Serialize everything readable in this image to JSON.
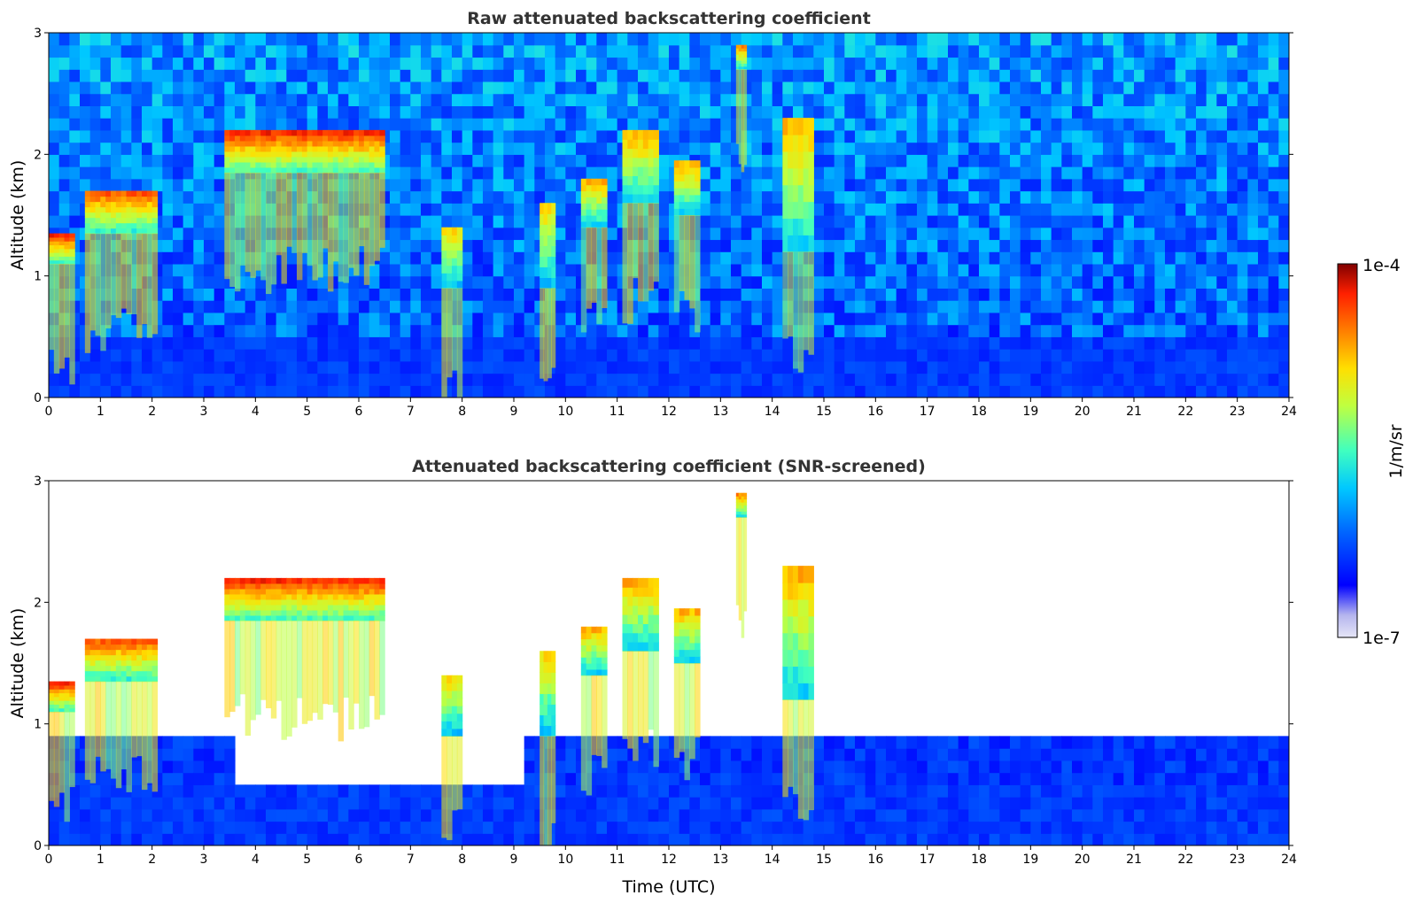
{
  "chart_data": [
    {
      "type": "heatmap",
      "title": "Raw attenuated backscattering coefficient",
      "xlabel": "",
      "ylabel": "Altitude (km)",
      "xlim": [
        0,
        24
      ],
      "ylim": [
        0,
        3
      ],
      "xticks": [
        "0",
        "1",
        "2",
        "3",
        "4",
        "5",
        "6",
        "7",
        "8",
        "9",
        "10",
        "11",
        "12",
        "13",
        "14",
        "15",
        "16",
        "17",
        "18",
        "19",
        "20",
        "21",
        "22",
        "23",
        "24"
      ],
      "yticks": [
        "0",
        "1",
        "2",
        "3"
      ],
      "screened": false,
      "layers": [
        {
          "t0": 0.0,
          "t1": 0.5,
          "base": 1.1,
          "top": 1.35,
          "intensity": 1.0
        },
        {
          "t0": 0.7,
          "t1": 2.1,
          "base": 1.35,
          "top": 1.7,
          "intensity": 0.95
        },
        {
          "t0": 3.4,
          "t1": 6.5,
          "base": 1.85,
          "top": 2.2,
          "intensity": 1.0
        },
        {
          "t0": 7.6,
          "t1": 8.0,
          "base": 0.9,
          "top": 1.4,
          "intensity": 0.8
        },
        {
          "t0": 9.5,
          "t1": 9.8,
          "base": 0.9,
          "top": 1.6,
          "intensity": 0.8
        },
        {
          "t0": 10.3,
          "t1": 10.8,
          "base": 1.4,
          "top": 1.8,
          "intensity": 0.85
        },
        {
          "t0": 11.1,
          "t1": 11.8,
          "base": 1.6,
          "top": 2.2,
          "intensity": 0.85
        },
        {
          "t0": 12.1,
          "t1": 12.6,
          "base": 1.5,
          "top": 1.95,
          "intensity": 0.85
        },
        {
          "t0": 13.3,
          "t1": 13.5,
          "base": 2.7,
          "top": 2.9,
          "intensity": 0.9
        },
        {
          "t0": 14.2,
          "t1": 14.8,
          "base": 1.2,
          "top": 2.3,
          "intensity": 0.85
        }
      ]
    },
    {
      "type": "heatmap",
      "title": "Attenuated backscattering coefficient (SNR-screened)",
      "xlabel": "Time (UTC)",
      "ylabel": "Altitude (km)",
      "xlim": [
        0,
        24
      ],
      "ylim": [
        0,
        3
      ],
      "xticks": [
        "0",
        "1",
        "2",
        "3",
        "4",
        "5",
        "6",
        "7",
        "8",
        "9",
        "10",
        "11",
        "12",
        "13",
        "14",
        "15",
        "16",
        "17",
        "18",
        "19",
        "20",
        "21",
        "22",
        "23",
        "24"
      ],
      "yticks": [
        "0",
        "1",
        "2",
        "3"
      ],
      "screened": true,
      "layers": [
        {
          "t0": 0.0,
          "t1": 0.5,
          "base": 1.1,
          "top": 1.35,
          "intensity": 1.0
        },
        {
          "t0": 0.7,
          "t1": 2.1,
          "base": 1.35,
          "top": 1.7,
          "intensity": 0.95
        },
        {
          "t0": 3.4,
          "t1": 6.5,
          "base": 1.85,
          "top": 2.2,
          "intensity": 1.0
        },
        {
          "t0": 7.6,
          "t1": 8.0,
          "base": 0.9,
          "top": 1.4,
          "intensity": 0.8
        },
        {
          "t0": 9.5,
          "t1": 9.8,
          "base": 0.9,
          "top": 1.6,
          "intensity": 0.8
        },
        {
          "t0": 10.3,
          "t1": 10.8,
          "base": 1.4,
          "top": 1.8,
          "intensity": 0.85
        },
        {
          "t0": 11.1,
          "t1": 11.8,
          "base": 1.6,
          "top": 2.2,
          "intensity": 0.85
        },
        {
          "t0": 12.1,
          "t1": 12.6,
          "base": 1.5,
          "top": 1.95,
          "intensity": 0.85
        },
        {
          "t0": 13.3,
          "t1": 13.5,
          "base": 2.7,
          "top": 2.9,
          "intensity": 0.9
        },
        {
          "t0": 14.2,
          "t1": 14.8,
          "base": 1.2,
          "top": 2.3,
          "intensity": 0.85
        }
      ]
    }
  ],
  "colorbar": {
    "max_label": "1e-4",
    "min_label": "1e-7",
    "unit_label": "1/m/sr",
    "colors": [
      "#e6e6f6",
      "#b4b4ee",
      "#0000ff",
      "#0064ff",
      "#00c8ff",
      "#40ffbf",
      "#bfff40",
      "#ffdf00",
      "#ff7f00",
      "#ff2000",
      "#800000"
    ]
  }
}
